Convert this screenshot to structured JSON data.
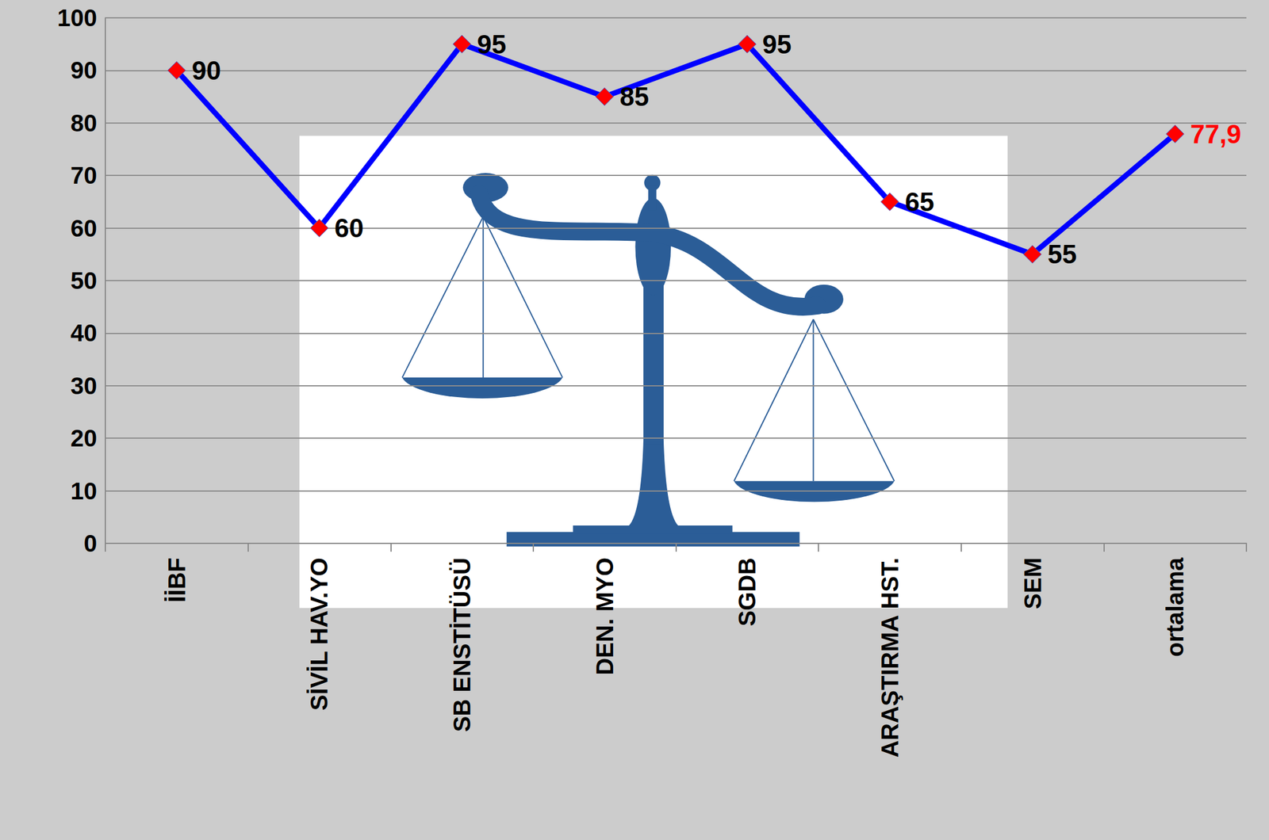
{
  "chart_data": {
    "type": "line",
    "categories": [
      "İİBF",
      "SİVİL HAV.YO",
      "SB ENSTİTÜSÜ",
      "DEN. MYO",
      "SGDB",
      "ARAŞTIRMA HST.",
      "SEM",
      "ortalama"
    ],
    "values": [
      90,
      60,
      95,
      85,
      95,
      65,
      55,
      77.9
    ],
    "value_labels": [
      "90",
      "60",
      "95",
      "85",
      "95",
      "65",
      "55",
      "77,9"
    ],
    "color": "#0000ff",
    "marker": "diamond",
    "ylim": [
      0,
      100
    ],
    "yticks": [
      0,
      10,
      20,
      30,
      40,
      50,
      60,
      70,
      80,
      90,
      100
    ],
    "grid": true,
    "data_labels": true
  }
}
